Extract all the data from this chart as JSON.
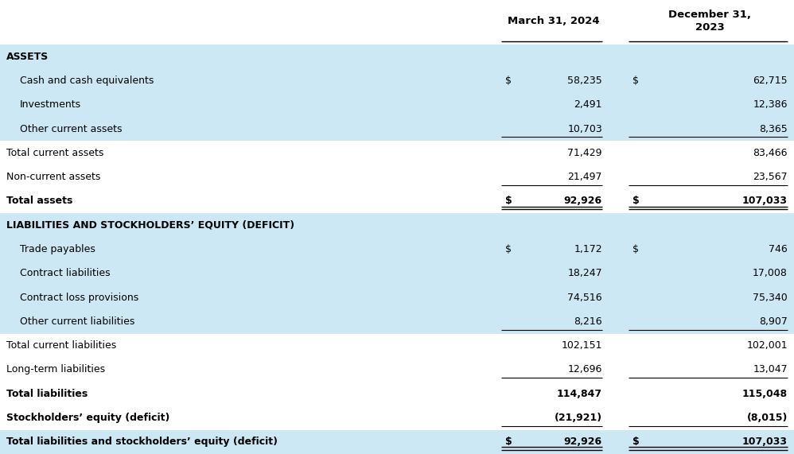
{
  "col1_header": "March 31, 2024",
  "col2_header": "December 31,\n2023",
  "light_blue": "#cce8f4",
  "white_bg": "#ffffff",
  "rows": [
    {
      "label": "ASSETS",
      "v1": null,
      "v2": null,
      "style": "section_header",
      "bg": "light_blue",
      "dollar1": false,
      "dollar2": false
    },
    {
      "label": "Cash and cash equivalents",
      "v1": "58,235",
      "v2": "62,715",
      "style": "indent",
      "bg": "light_blue",
      "dollar1": true,
      "dollar2": true
    },
    {
      "label": "Investments",
      "v1": "2,491",
      "v2": "12,386",
      "style": "indent",
      "bg": "light_blue",
      "dollar1": false,
      "dollar2": false
    },
    {
      "label": "Other current assets",
      "v1": "10,703",
      "v2": "8,365",
      "style": "indent_underline",
      "bg": "light_blue",
      "dollar1": false,
      "dollar2": false
    },
    {
      "label": "Total current assets",
      "v1": "71,429",
      "v2": "83,466",
      "style": "normal",
      "bg": "white",
      "dollar1": false,
      "dollar2": false
    },
    {
      "label": "Non-current assets",
      "v1": "21,497",
      "v2": "23,567",
      "style": "normal_underline",
      "bg": "white",
      "dollar1": false,
      "dollar2": false
    },
    {
      "label": "Total assets",
      "v1": "92,926",
      "v2": "107,033",
      "style": "bold_double_underline",
      "bg": "white",
      "dollar1": true,
      "dollar2": true
    },
    {
      "label": "LIABILITIES AND STOCKHOLDERS’ EQUITY (DEFICIT)",
      "v1": null,
      "v2": null,
      "style": "section_header",
      "bg": "light_blue",
      "dollar1": false,
      "dollar2": false
    },
    {
      "label": "Trade payables",
      "v1": "1,172",
      "v2": "746",
      "style": "indent",
      "bg": "light_blue",
      "dollar1": true,
      "dollar2": true
    },
    {
      "label": "Contract liabilities",
      "v1": "18,247",
      "v2": "17,008",
      "style": "indent",
      "bg": "light_blue",
      "dollar1": false,
      "dollar2": false
    },
    {
      "label": "Contract loss provisions",
      "v1": "74,516",
      "v2": "75,340",
      "style": "indent",
      "bg": "light_blue",
      "dollar1": false,
      "dollar2": false
    },
    {
      "label": "Other current liabilities",
      "v1": "8,216",
      "v2": "8,907",
      "style": "indent_underline",
      "bg": "light_blue",
      "dollar1": false,
      "dollar2": false
    },
    {
      "label": "Total current liabilities",
      "v1": "102,151",
      "v2": "102,001",
      "style": "normal",
      "bg": "white",
      "dollar1": false,
      "dollar2": false
    },
    {
      "label": "Long-term liabilities",
      "v1": "12,696",
      "v2": "13,047",
      "style": "normal_underline",
      "bg": "white",
      "dollar1": false,
      "dollar2": false
    },
    {
      "label": "Total liabilities",
      "v1": "114,847",
      "v2": "115,048",
      "style": "bold",
      "bg": "white",
      "dollar1": false,
      "dollar2": false
    },
    {
      "label": "Stockholders’ equity (deficit)",
      "v1": "(21,921)",
      "v2": "(8,015)",
      "style": "bold_underline",
      "bg": "white",
      "dollar1": false,
      "dollar2": false
    },
    {
      "label": "Total liabilities and stockholders’ equity (deficit)",
      "v1": "92,926",
      "v2": "107,033",
      "style": "bold_double_underline",
      "bg": "light_blue",
      "dollar1": true,
      "dollar2": true
    }
  ],
  "fig_width": 9.98,
  "fig_height": 5.71,
  "dpi": 100
}
